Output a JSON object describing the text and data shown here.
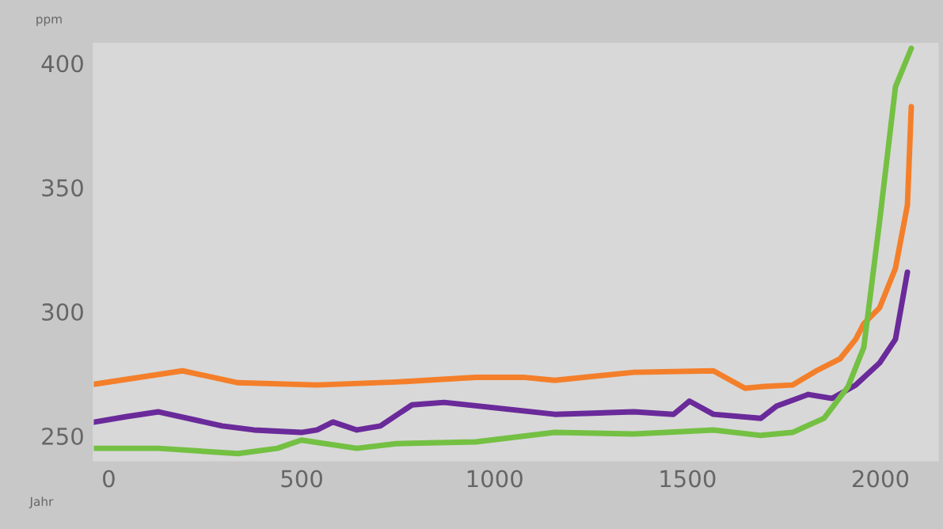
{
  "chart_data": {
    "type": "line",
    "ylabel": "ppm",
    "xlabel": "Jahr",
    "xlim": [
      -40,
      2150
    ],
    "ylim": [
      240,
      408
    ],
    "xticks": [
      0,
      500,
      1000,
      1500,
      2000
    ],
    "yticks": [
      250,
      300,
      350,
      400
    ],
    "grid": false,
    "legend": false,
    "series": [
      {
        "color": "#f47f2a",
        "x": [
          -39,
          191,
          335,
          540,
          745,
          951,
          1074,
          1156,
          1361,
          1567,
          1649,
          1690,
          1772,
          1834,
          1895,
          1936,
          1957,
          1998,
          2039,
          2070,
          2080
        ],
        "values": [
          270.8,
          276.2,
          271.4,
          270.5,
          271.7,
          273.6,
          273.6,
          272.4,
          275.6,
          276.2,
          269.2,
          269.8,
          270.5,
          276.2,
          281,
          288.9,
          295.2,
          301.6,
          317.5,
          342.9,
          382.5
        ]
      },
      {
        "color": "#6a2a9a",
        "x": [
          -39,
          47,
          129,
          294,
          376,
          499,
          540,
          581,
          643,
          704,
          786,
          869,
          1156,
          1361,
          1464,
          1505,
          1567,
          1690,
          1731,
          1813,
          1875,
          1936,
          1998,
          2039,
          2070
        ],
        "values": [
          255.5,
          257.8,
          259.7,
          254,
          252.4,
          251.4,
          252.4,
          255.6,
          252.4,
          254,
          262.5,
          263.5,
          258.7,
          259.7,
          258.7,
          264,
          258.7,
          257.1,
          262,
          266.7,
          265.1,
          270.5,
          279.4,
          288.9,
          315.9
        ]
      },
      {
        "color": "#74c043",
        "x": [
          -39,
          129,
          335,
          437,
          499,
          643,
          745,
          951,
          1156,
          1361,
          1567,
          1690,
          1772,
          1854,
          1916,
          1957,
          1998,
          2039,
          2080
        ],
        "values": [
          245,
          245,
          242.9,
          245,
          248.3,
          245,
          246.9,
          247.6,
          251.4,
          250.8,
          252.4,
          250.2,
          251.4,
          257.1,
          269.8,
          285.7,
          336.5,
          390.5,
          406
        ]
      }
    ]
  }
}
